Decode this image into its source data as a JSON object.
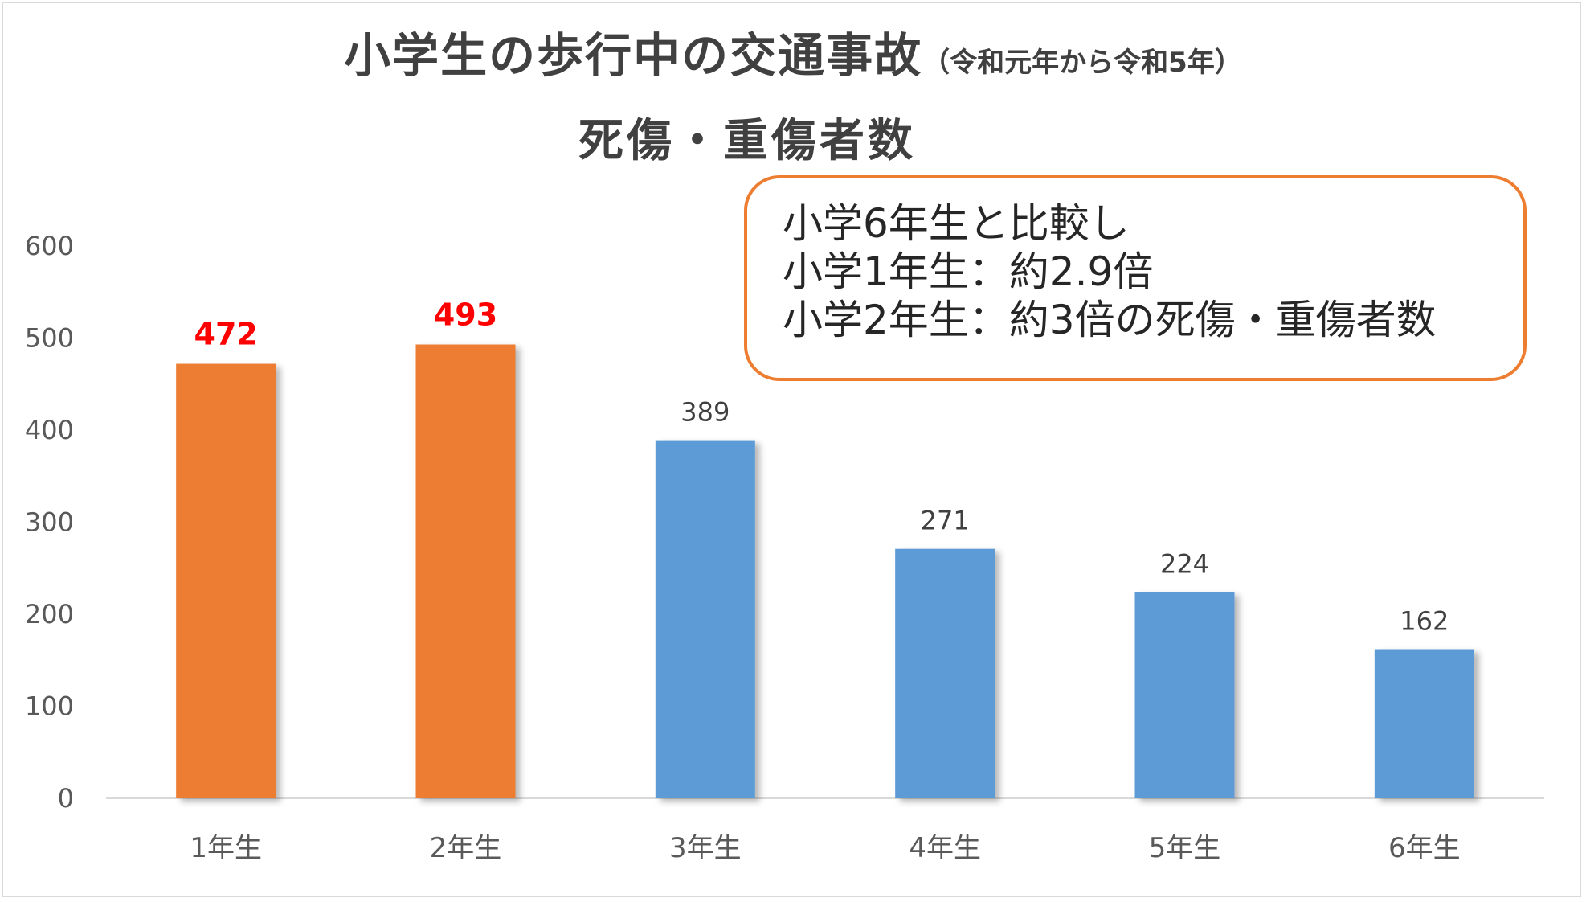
{
  "title": {
    "main": "小学生の歩行中の交通事故",
    "period": "（令和元年から令和5年）",
    "subtitle": "死傷・重傷者数"
  },
  "callout": {
    "lines": [
      "小学6年生と比較し",
      "小学1年生：約2.9倍",
      "小学2年生：約3倍の死傷・重傷者数"
    ]
  },
  "colors": {
    "highlight_bar": "#ed7d31",
    "normal_bar": "#5b9bd5",
    "highlight_label": "#ff0000",
    "normal_label": "#404040",
    "callout_border": "#ed7d31"
  },
  "chart_data": {
    "type": "bar",
    "categories": [
      "1年生",
      "2年生",
      "3年生",
      "4年生",
      "5年生",
      "6年生"
    ],
    "values": [
      472,
      493,
      389,
      271,
      224,
      162
    ],
    "highlighted": [
      true,
      true,
      false,
      false,
      false,
      false
    ],
    "ylim": [
      0,
      600
    ],
    "yticks": [
      0,
      100,
      200,
      300,
      400,
      500,
      600
    ],
    "grid": false,
    "legend": "none",
    "xlabel": "",
    "ylabel": ""
  }
}
